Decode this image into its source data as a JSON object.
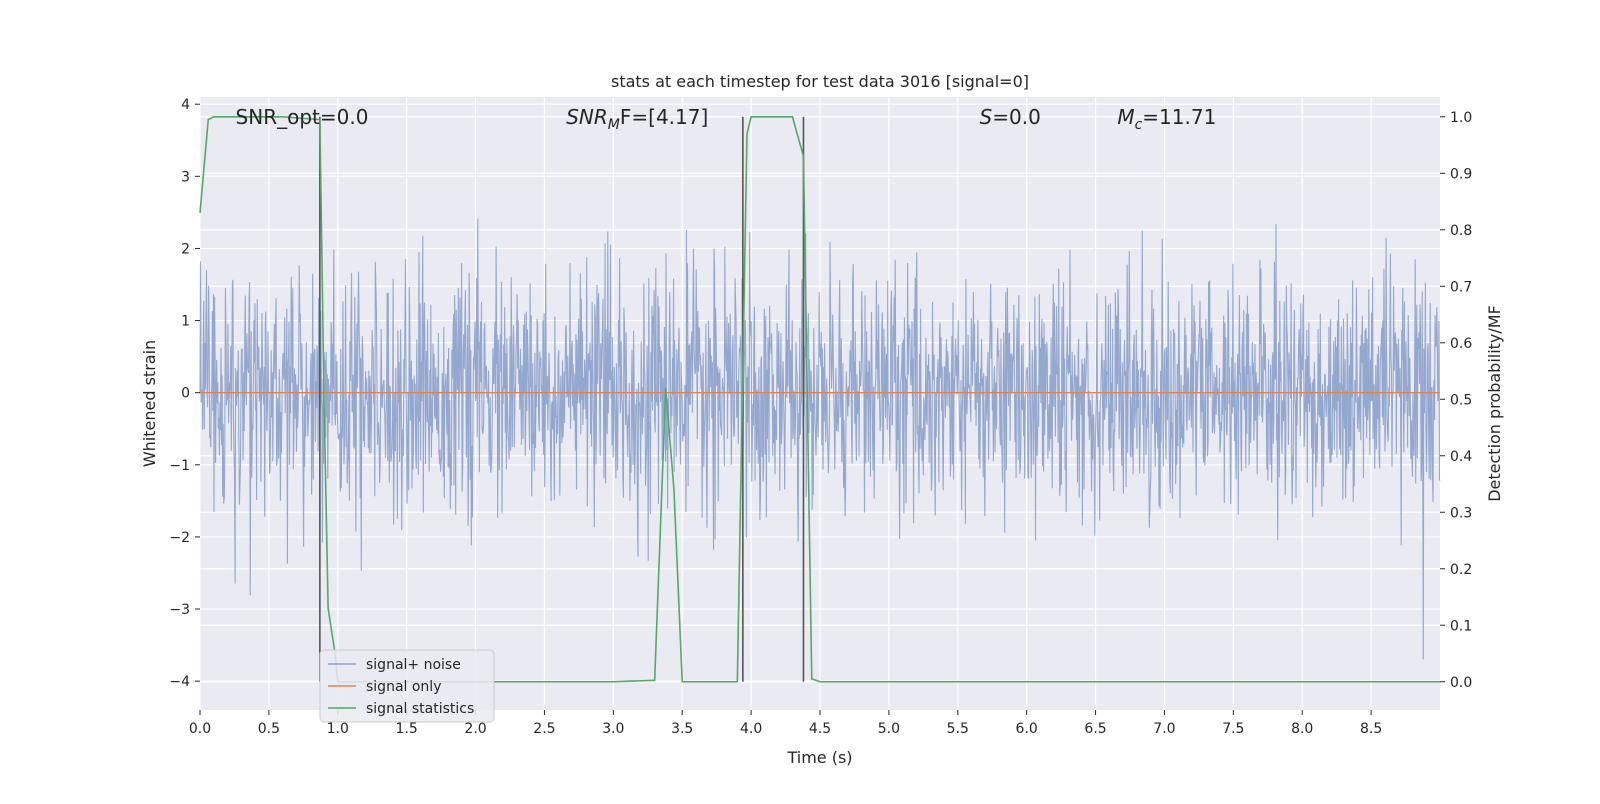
{
  "chart_data": {
    "type": "line",
    "title": "stats at each timestep for test data 3016 [signal=0]",
    "xlabel": "Time (s)",
    "ylabel": "Whitened strain",
    "y2label": "Detection probability/MF",
    "xlim": [
      0.0,
      9.0
    ],
    "ylim": [
      -4.4,
      4.1
    ],
    "y2lim": [
      -0.05,
      1.035
    ],
    "x_ticks": [
      "0.0",
      "0.5",
      "1.0",
      "1.5",
      "2.0",
      "2.5",
      "3.0",
      "3.5",
      "4.0",
      "4.5",
      "5.0",
      "5.5",
      "6.0",
      "6.5",
      "7.0",
      "7.5",
      "8.0",
      "8.5"
    ],
    "x_tick_values": [
      0.0,
      0.5,
      1.0,
      1.5,
      2.0,
      2.5,
      3.0,
      3.5,
      4.0,
      4.5,
      5.0,
      5.5,
      6.0,
      6.5,
      7.0,
      7.5,
      8.0,
      8.5
    ],
    "y_ticks": [
      "−4",
      "−3",
      "−2",
      "−1",
      "0",
      "1",
      "2",
      "3",
      "4"
    ],
    "y_tick_values": [
      -4,
      -3,
      -2,
      -1,
      0,
      1,
      2,
      3,
      4
    ],
    "y2_ticks": [
      "0.0",
      "0.1",
      "0.2",
      "0.3",
      "0.4",
      "0.5",
      "0.6",
      "0.7",
      "0.8",
      "0.9",
      "1.0"
    ],
    "y2_tick_values": [
      0.0,
      0.1,
      0.2,
      0.3,
      0.4,
      0.5,
      0.6,
      0.7,
      0.8,
      0.9,
      1.0
    ],
    "grid": true,
    "legend_position": "lower-left",
    "annotations": [
      {
        "text": "SNR_opt=0.0",
        "x": 0.2
      },
      {
        "text_main": "SNR",
        "text_sub": "M",
        "text_rest": "F=[4.17]",
        "x": 2.6
      },
      {
        "text_main": "S",
        "text_rest": "=0.0",
        "x": 5.6
      },
      {
        "text_main": "M",
        "text_sub": "c",
        "text_rest": "=11.71",
        "x": 6.6
      }
    ],
    "vertical_lines": [
      0.87,
      3.94,
      4.38
    ],
    "series": [
      {
        "name": "signal+ noise",
        "axis": "left",
        "color": "#8fa3cc",
        "description_level": "whitened noise, approx std 0.8, peaks to ±3.7",
        "envelope": {
          "std": 0.8,
          "max": 3.7,
          "min": -3.7
        }
      },
      {
        "name": "signal only",
        "axis": "left",
        "color": "#dd8452",
        "x": [
          0.0,
          9.0
        ],
        "values": [
          0.0,
          0.0
        ]
      },
      {
        "name": "signal statistics",
        "axis": "right",
        "color": "#55a868",
        "x": [
          0.0,
          0.06,
          0.1,
          0.4,
          0.6,
          0.87,
          0.9,
          0.93,
          0.98,
          1.0,
          2.0,
          3.0,
          3.3,
          3.38,
          3.44,
          3.5,
          3.9,
          3.97,
          4.0,
          4.3,
          4.38,
          4.44,
          4.5,
          6.0,
          9.0
        ],
        "values": [
          0.83,
          0.995,
          1.0,
          1.0,
          1.0,
          0.995,
          0.5,
          0.13,
          0.05,
          0.0,
          0.0,
          0.0,
          0.0025,
          0.52,
          0.34,
          0.0,
          0.0,
          0.97,
          1.0,
          1.0,
          0.93,
          0.005,
          0.0,
          0.0,
          0.0
        ]
      }
    ]
  }
}
